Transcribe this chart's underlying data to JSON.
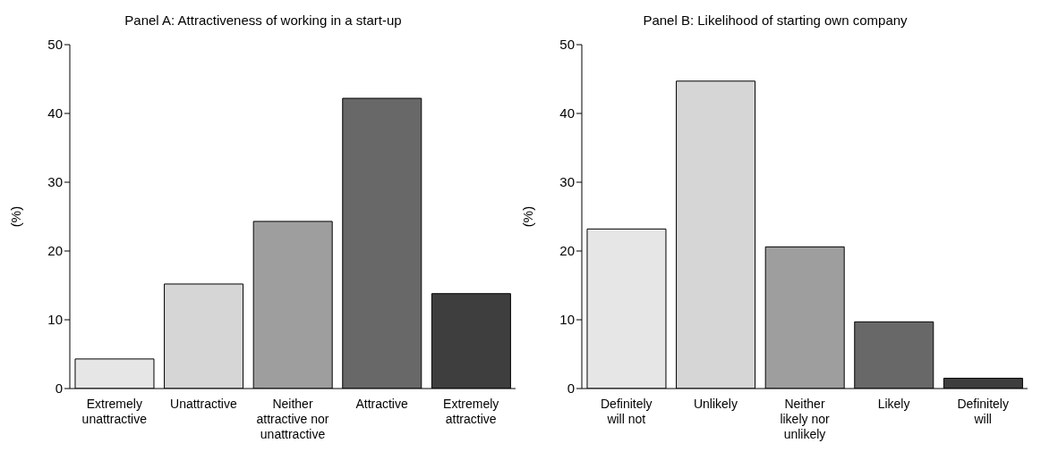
{
  "chart_data": [
    {
      "type": "bar",
      "title": "Panel A: Attractiveness of working in a start-up",
      "ylabel": "(%)",
      "categories": [
        "Extremely unattractive",
        "Unattractive",
        "Neither attractive nor unattractive",
        "Attractive",
        "Extremely attractive"
      ],
      "values": [
        4.3,
        15.2,
        24.3,
        42.2,
        13.8
      ],
      "colors": [
        "#e6e6e6",
        "#d6d6d6",
        "#9e9e9e",
        "#686868",
        "#3e3e3e"
      ],
      "ylim": [
        0,
        50
      ],
      "yticks": [
        0,
        10,
        20,
        30,
        40,
        50
      ]
    },
    {
      "type": "bar",
      "title": "Panel B: Likelihood of starting own company",
      "ylabel": "(%)",
      "categories": [
        "Definitely will not",
        "Unlikely",
        "Neither likely nor unlikely",
        "Likely",
        "Definitely will"
      ],
      "values": [
        23.2,
        44.7,
        20.6,
        9.7,
        1.5
      ],
      "colors": [
        "#e6e6e6",
        "#d6d6d6",
        "#9e9e9e",
        "#686868",
        "#3e3e3e"
      ],
      "ylim": [
        0,
        50
      ],
      "yticks": [
        0,
        10,
        20,
        30,
        40,
        50
      ]
    }
  ]
}
